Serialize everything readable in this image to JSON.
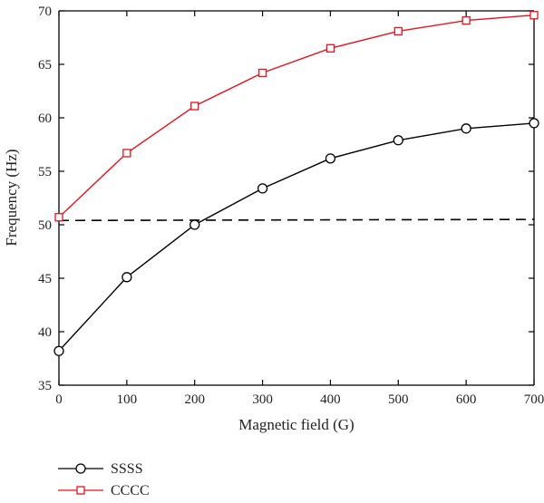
{
  "chart_data": {
    "type": "line",
    "xlabel": "Magnetic field (G)",
    "ylabel": "Frequency (Hz)",
    "xlim": [
      0,
      700
    ],
    "ylim": [
      35,
      70
    ],
    "x_ticks": [
      "0",
      "100",
      "200",
      "300",
      "400",
      "500",
      "600",
      "700"
    ],
    "y_ticks": [
      "35",
      "40",
      "45",
      "50",
      "55",
      "60",
      "65",
      "70"
    ],
    "grid": false,
    "legend_position": "bottom-left, below plot",
    "x": [
      0,
      100,
      200,
      300,
      400,
      500,
      600,
      700
    ],
    "series": [
      {
        "name": "SSSS",
        "color": "#000000",
        "marker": "circle",
        "values": [
          38.2,
          45.1,
          50.0,
          53.4,
          56.2,
          57.9,
          59.0,
          59.5
        ]
      },
      {
        "name": "CCCC",
        "color": "#e8121c",
        "marker": "square",
        "values": [
          50.7,
          56.7,
          61.1,
          64.2,
          66.5,
          68.1,
          69.1,
          69.6
        ]
      }
    ],
    "reference_line": {
      "style": "dashed",
      "color": "#000000",
      "x": [
        0,
        700
      ],
      "values": [
        50.4,
        50.5
      ]
    }
  }
}
